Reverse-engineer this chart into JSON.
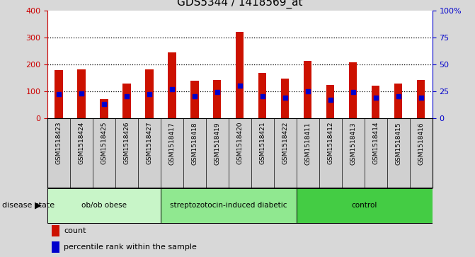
{
  "title": "GDS5344 / 1418569_at",
  "samples": [
    "GSM1518423",
    "GSM1518424",
    "GSM1518425",
    "GSM1518426",
    "GSM1518427",
    "GSM1518417",
    "GSM1518418",
    "GSM1518419",
    "GSM1518420",
    "GSM1518421",
    "GSM1518422",
    "GSM1518411",
    "GSM1518412",
    "GSM1518413",
    "GSM1518414",
    "GSM1518415",
    "GSM1518416"
  ],
  "counts": [
    178,
    182,
    70,
    128,
    182,
    245,
    140,
    142,
    320,
    167,
    148,
    213,
    123,
    207,
    120,
    128,
    142
  ],
  "percentiles": [
    22,
    23,
    13,
    20,
    22,
    27,
    20,
    24,
    30,
    20,
    19,
    25,
    17,
    24,
    19,
    20,
    19
  ],
  "groups": [
    {
      "label": "ob/ob obese",
      "start": 0,
      "end": 5,
      "color": "#c8f5c8"
    },
    {
      "label": "streptozotocin-induced diabetic",
      "start": 5,
      "end": 11,
      "color": "#90e890"
    },
    {
      "label": "control",
      "start": 11,
      "end": 17,
      "color": "#44cc44"
    }
  ],
  "bar_color": "#cc1100",
  "percentile_color": "#0000cc",
  "bg_color": "#d8d8d8",
  "plot_bg": "#ffffff",
  "label_bg": "#d0d0d0",
  "ylim_left": [
    0,
    400
  ],
  "ylim_right": [
    0,
    100
  ],
  "left_yticks": [
    0,
    100,
    200,
    300,
    400
  ],
  "right_yticks": [
    0,
    25,
    50,
    75,
    100
  ],
  "right_yticklabels": [
    "0",
    "25",
    "50",
    "75",
    "100%"
  ],
  "ylabel_left_color": "#cc0000",
  "ylabel_right_color": "#0000cc",
  "title_fontsize": 11,
  "bar_width": 0.35
}
